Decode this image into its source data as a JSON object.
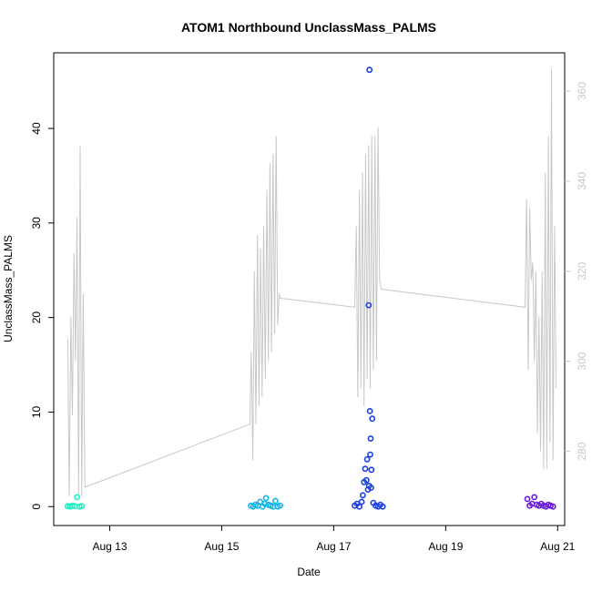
{
  "chart_data": {
    "type": "scatter",
    "title": "ATOM1 Northbound UnclassMass_PALMS",
    "xlabel": "Date",
    "ylabel": "UnclassMass_PALMS",
    "xlim": [
      "2016-08-12 00:00",
      "2016-08-21 03:00"
    ],
    "ylim": [
      -2,
      48
    ],
    "y2lim": [
      263.5,
      368.5
    ],
    "x_ticks": [
      {
        "label": "Aug 13",
        "date": "2016-08-13"
      },
      {
        "label": "Aug 15",
        "date": "2016-08-15"
      },
      {
        "label": "Aug 17",
        "date": "2016-08-17"
      },
      {
        "label": "Aug 19",
        "date": "2016-08-19"
      },
      {
        "label": "Aug 21",
        "date": "2016-08-21"
      }
    ],
    "y_ticks": [
      0,
      10,
      20,
      30,
      40
    ],
    "y2_ticks": [
      280,
      300,
      320,
      340,
      360
    ],
    "grid": false,
    "secondary_series_color": "#c8c8c8",
    "series": [
      {
        "color": "#22eec4",
        "points": [
          [
            "2016-08-12 06:00",
            0.05
          ],
          [
            "2016-08-12 07:00",
            0.0
          ],
          [
            "2016-08-12 08:00",
            0.1
          ],
          [
            "2016-08-12 09:00",
            0.05
          ],
          [
            "2016-08-12 10:00",
            1.0
          ],
          [
            "2016-08-12 11:00",
            0.0
          ],
          [
            "2016-08-12 12:00",
            0.05
          ]
        ]
      },
      {
        "color": "#11b6e8",
        "points": [
          [
            "2016-08-15 12:30",
            0.1
          ],
          [
            "2016-08-15 13:30",
            0.0
          ],
          [
            "2016-08-15 14:30",
            0.2
          ],
          [
            "2016-08-15 15:30",
            0.1
          ],
          [
            "2016-08-15 16:30",
            0.5
          ],
          [
            "2016-08-15 17:30",
            0.0
          ],
          [
            "2016-08-15 18:30",
            0.3
          ],
          [
            "2016-08-15 19:00",
            0.9
          ],
          [
            "2016-08-15 20:00",
            0.2
          ],
          [
            "2016-08-15 21:00",
            0.1
          ],
          [
            "2016-08-15 22:00",
            0.0
          ],
          [
            "2016-08-15 23:00",
            0.6
          ],
          [
            "2016-08-16 00:00",
            0.0
          ],
          [
            "2016-08-16 01:00",
            0.1
          ]
        ]
      },
      {
        "color": "#1a3fe0",
        "points": [
          [
            "2016-08-17 09:00",
            0.1
          ],
          [
            "2016-08-17 10:00",
            0.3
          ],
          [
            "2016-08-17 11:00",
            0.0
          ],
          [
            "2016-08-17 12:00",
            0.5
          ],
          [
            "2016-08-17 12:30",
            1.2
          ],
          [
            "2016-08-17 13:00",
            2.6
          ],
          [
            "2016-08-17 13:30",
            4.0
          ],
          [
            "2016-08-17 14:00",
            2.8
          ],
          [
            "2016-08-17 14:20",
            5.0
          ],
          [
            "2016-08-17 14:40",
            1.8
          ],
          [
            "2016-08-17 15:00",
            21.3
          ],
          [
            "2016-08-17 15:10",
            2.2
          ],
          [
            "2016-08-17 15:20",
            46.2
          ],
          [
            "2016-08-17 15:30",
            10.1
          ],
          [
            "2016-08-17 15:40",
            5.5
          ],
          [
            "2016-08-17 15:50",
            7.2
          ],
          [
            "2016-08-17 16:00",
            2.0
          ],
          [
            "2016-08-17 16:10",
            3.9
          ],
          [
            "2016-08-17 16:30",
            9.3
          ],
          [
            "2016-08-17 17:00",
            0.4
          ],
          [
            "2016-08-17 18:00",
            0.1
          ],
          [
            "2016-08-17 19:00",
            0.0
          ],
          [
            "2016-08-17 20:00",
            0.2
          ],
          [
            "2016-08-17 21:00",
            0.0
          ]
        ]
      },
      {
        "color": "#6a19dc",
        "points": [
          [
            "2016-08-20 11:00",
            0.8
          ],
          [
            "2016-08-20 12:00",
            0.1
          ],
          [
            "2016-08-20 13:00",
            0.3
          ],
          [
            "2016-08-20 14:00",
            1.0
          ],
          [
            "2016-08-20 15:00",
            0.2
          ],
          [
            "2016-08-20 16:00",
            0.1
          ],
          [
            "2016-08-20 17:00",
            0.3
          ],
          [
            "2016-08-20 18:00",
            0.1
          ],
          [
            "2016-08-20 19:00",
            0.0
          ],
          [
            "2016-08-20 20:00",
            0.2
          ],
          [
            "2016-08-20 21:00",
            0.1
          ],
          [
            "2016-08-20 22:00",
            0.0
          ]
        ]
      }
    ],
    "secondary_line": [
      [
        "2016-08-12 06:00",
        305
      ],
      [
        "2016-08-12 06:40",
        270
      ],
      [
        "2016-08-12 07:20",
        310
      ],
      [
        "2016-08-12 08:00",
        288
      ],
      [
        "2016-08-12 08:40",
        324
      ],
      [
        "2016-08-12 09:20",
        300
      ],
      [
        "2016-08-12 10:00",
        332
      ],
      [
        "2016-08-12 10:40",
        270
      ],
      [
        "2016-08-12 11:20",
        348
      ],
      [
        "2016-08-12 12:00",
        270
      ],
      [
        "2016-08-12 12:40",
        315
      ],
      [
        "2016-08-12 13:20",
        272
      ],
      [
        "2016-08-15 12:00",
        286
      ],
      [
        "2016-08-15 12:40",
        302
      ],
      [
        "2016-08-15 13:20",
        278
      ],
      [
        "2016-08-15 14:00",
        320
      ],
      [
        "2016-08-15 14:40",
        286
      ],
      [
        "2016-08-15 15:20",
        328
      ],
      [
        "2016-08-15 16:00",
        290
      ],
      [
        "2016-08-15 16:40",
        325
      ],
      [
        "2016-08-15 17:20",
        292
      ],
      [
        "2016-08-15 18:00",
        330
      ],
      [
        "2016-08-15 18:40",
        296
      ],
      [
        "2016-08-15 19:20",
        338
      ],
      [
        "2016-08-15 20:00",
        300
      ],
      [
        "2016-08-15 20:40",
        344
      ],
      [
        "2016-08-15 21:20",
        302
      ],
      [
        "2016-08-15 22:00",
        346
      ],
      [
        "2016-08-15 22:40",
        306
      ],
      [
        "2016-08-15 23:20",
        350
      ],
      [
        "2016-08-16 00:00",
        308
      ],
      [
        "2016-08-16 00:40",
        315
      ],
      [
        "2016-08-16 01:00",
        314
      ],
      [
        "2016-08-17 09:00",
        312
      ],
      [
        "2016-08-17 09:40",
        330
      ],
      [
        "2016-08-17 10:20",
        292
      ],
      [
        "2016-08-17 11:00",
        338
      ],
      [
        "2016-08-17 11:40",
        294
      ],
      [
        "2016-08-17 12:20",
        342
      ],
      [
        "2016-08-17 13:00",
        290
      ],
      [
        "2016-08-17 13:40",
        346
      ],
      [
        "2016-08-17 14:20",
        296
      ],
      [
        "2016-08-17 15:00",
        348
      ],
      [
        "2016-08-17 15:40",
        294
      ],
      [
        "2016-08-17 16:20",
        350
      ],
      [
        "2016-08-17 17:00",
        298
      ],
      [
        "2016-08-17 17:40",
        350
      ],
      [
        "2016-08-17 18:20",
        300
      ],
      [
        "2016-08-17 19:00",
        352
      ],
      [
        "2016-08-17 19:40",
        318
      ],
      [
        "2016-08-17 20:20",
        316
      ],
      [
        "2016-08-20 10:00",
        312
      ],
      [
        "2016-08-20 10:40",
        336
      ],
      [
        "2016-08-20 11:20",
        298
      ],
      [
        "2016-08-20 12:00",
        334
      ],
      [
        "2016-08-20 12:40",
        318
      ],
      [
        "2016-08-20 13:20",
        322
      ],
      [
        "2016-08-20 14:00",
        300
      ],
      [
        "2016-08-20 14:40",
        320
      ],
      [
        "2016-08-20 15:20",
        284
      ],
      [
        "2016-08-20 16:00",
        310
      ],
      [
        "2016-08-20 16:40",
        280
      ],
      [
        "2016-08-20 17:20",
        320
      ],
      [
        "2016-08-20 18:00",
        276
      ],
      [
        "2016-08-20 18:40",
        342
      ],
      [
        "2016-08-20 19:20",
        276
      ],
      [
        "2016-08-20 20:00",
        350
      ],
      [
        "2016-08-20 20:40",
        282
      ],
      [
        "2016-08-20 21:20",
        365
      ],
      [
        "2016-08-20 22:00",
        278
      ],
      [
        "2016-08-20 22:40",
        330
      ],
      [
        "2016-08-20 23:20",
        294
      ]
    ]
  }
}
